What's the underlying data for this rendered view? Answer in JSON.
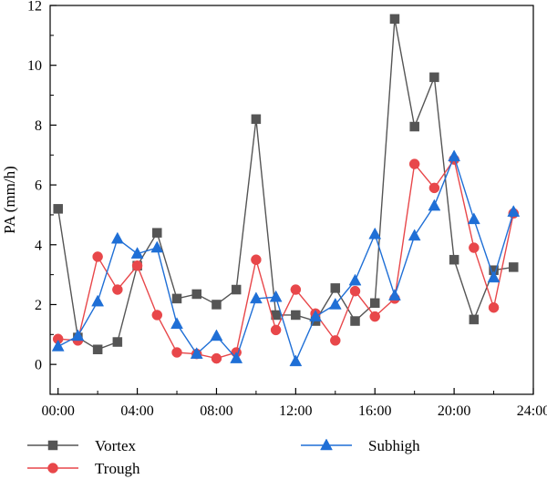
{
  "chart_data": {
    "type": "line",
    "title": "",
    "xlabel": "",
    "ylabel": "PA (mm/h)",
    "x": [
      0,
      1,
      2,
      3,
      4,
      5,
      6,
      7,
      8,
      9,
      10,
      11,
      12,
      13,
      14,
      15,
      16,
      17,
      18,
      19,
      20,
      21,
      22,
      23
    ],
    "xlim": [
      -0.4,
      24
    ],
    "ylim": [
      -1,
      12
    ],
    "x_ticks": [
      {
        "value": 0,
        "label": "00:00"
      },
      {
        "value": 4,
        "label": "04:00"
      },
      {
        "value": 8,
        "label": "08:00"
      },
      {
        "value": 12,
        "label": "12:00"
      },
      {
        "value": 16,
        "label": "16:00"
      },
      {
        "value": 20,
        "label": "20:00"
      },
      {
        "value": 24,
        "label": "24:00"
      }
    ],
    "y_ticks": [
      {
        "value": 0,
        "label": "0"
      },
      {
        "value": 2,
        "label": "2"
      },
      {
        "value": 4,
        "label": "4"
      },
      {
        "value": 6,
        "label": "6"
      },
      {
        "value": 8,
        "label": "8"
      },
      {
        "value": 10,
        "label": "10"
      },
      {
        "value": 12,
        "label": "12"
      }
    ],
    "grid": false,
    "legend_position": "bottom",
    "series": [
      {
        "name": "Vortex",
        "color": "#555555",
        "marker": "square",
        "values": [
          5.2,
          0.9,
          0.5,
          0.75,
          3.3,
          4.4,
          2.2,
          2.35,
          2.0,
          2.5,
          8.2,
          1.65,
          1.65,
          1.45,
          2.55,
          1.45,
          2.05,
          11.55,
          7.95,
          9.6,
          3.5,
          1.5,
          3.15,
          3.25
        ]
      },
      {
        "name": "Trough",
        "color": "#e8474a",
        "marker": "circle",
        "values": [
          0.85,
          0.8,
          3.6,
          2.5,
          3.3,
          1.65,
          0.4,
          0.35,
          0.2,
          0.4,
          3.5,
          1.15,
          2.5,
          1.7,
          0.8,
          2.45,
          1.6,
          2.2,
          6.7,
          5.9,
          6.85,
          3.9,
          1.9,
          5.05
        ]
      },
      {
        "name": "Subhigh",
        "color": "#1f6fd6",
        "marker": "triangle",
        "values": [
          0.6,
          0.95,
          2.1,
          4.2,
          3.7,
          3.9,
          1.35,
          0.35,
          0.95,
          0.2,
          2.2,
          2.25,
          0.1,
          1.6,
          2.0,
          2.8,
          4.35,
          2.3,
          4.3,
          5.3,
          6.95,
          4.85,
          2.9,
          5.1
        ]
      }
    ]
  }
}
